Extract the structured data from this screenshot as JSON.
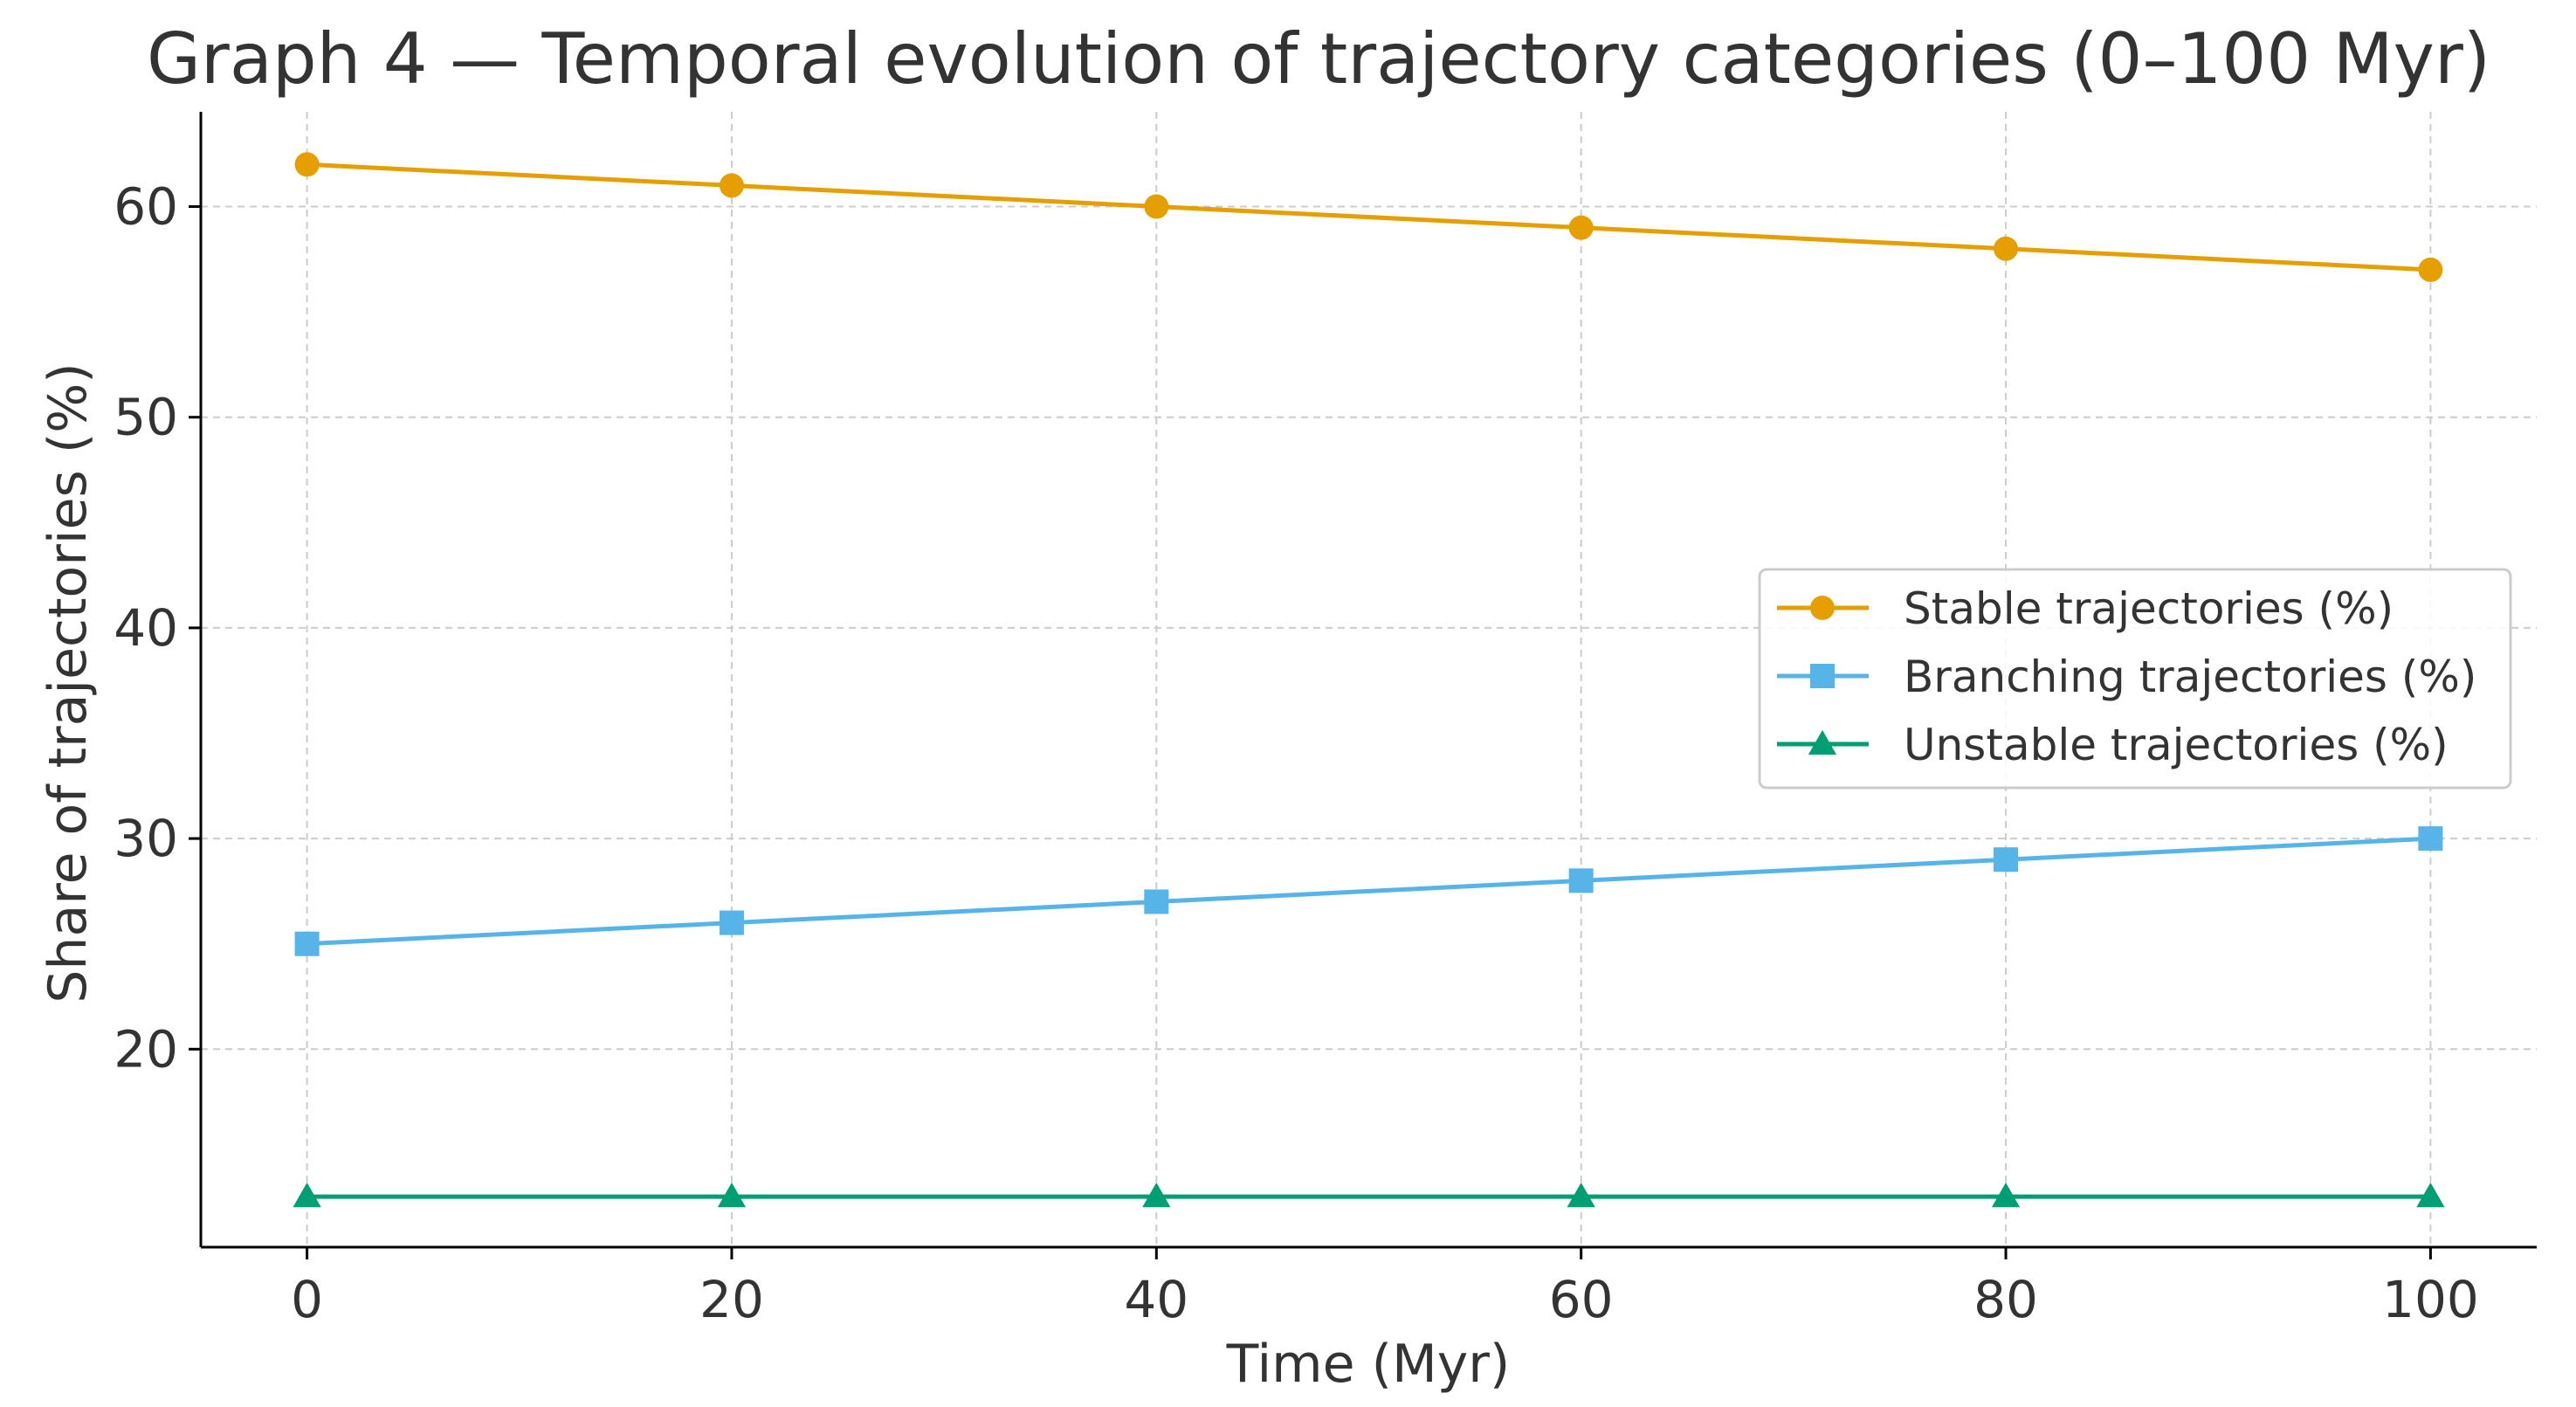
{
  "chart_data": {
    "type": "line",
    "title": "Graph 4 — Temporal evolution of trajectory categories (0–100 Myr)",
    "xlabel": "Time (Myr)",
    "ylabel": "Share of trajectories (%)",
    "x": [
      0,
      20,
      40,
      60,
      80,
      100
    ],
    "xlim": [
      -5,
      105
    ],
    "ylim": [
      10.6,
      64.5
    ],
    "x_ticks": [
      0,
      20,
      40,
      60,
      80,
      100
    ],
    "y_ticks": [
      20,
      30,
      40,
      50,
      60
    ],
    "grid": true,
    "legend_position": "center-right",
    "series": [
      {
        "name": "Stable trajectories (%)",
        "values": [
          62,
          61,
          60,
          59,
          58,
          57
        ],
        "color": "#E69F00",
        "marker": "circle"
      },
      {
        "name": "Branching trajectories (%)",
        "values": [
          25,
          26,
          27,
          28,
          29,
          30
        ],
        "color": "#56B4E9",
        "marker": "square"
      },
      {
        "name": "Unstable trajectories (%)",
        "values": [
          13,
          13,
          13,
          13,
          13,
          13
        ],
        "color": "#009E73",
        "marker": "triangle"
      }
    ]
  }
}
